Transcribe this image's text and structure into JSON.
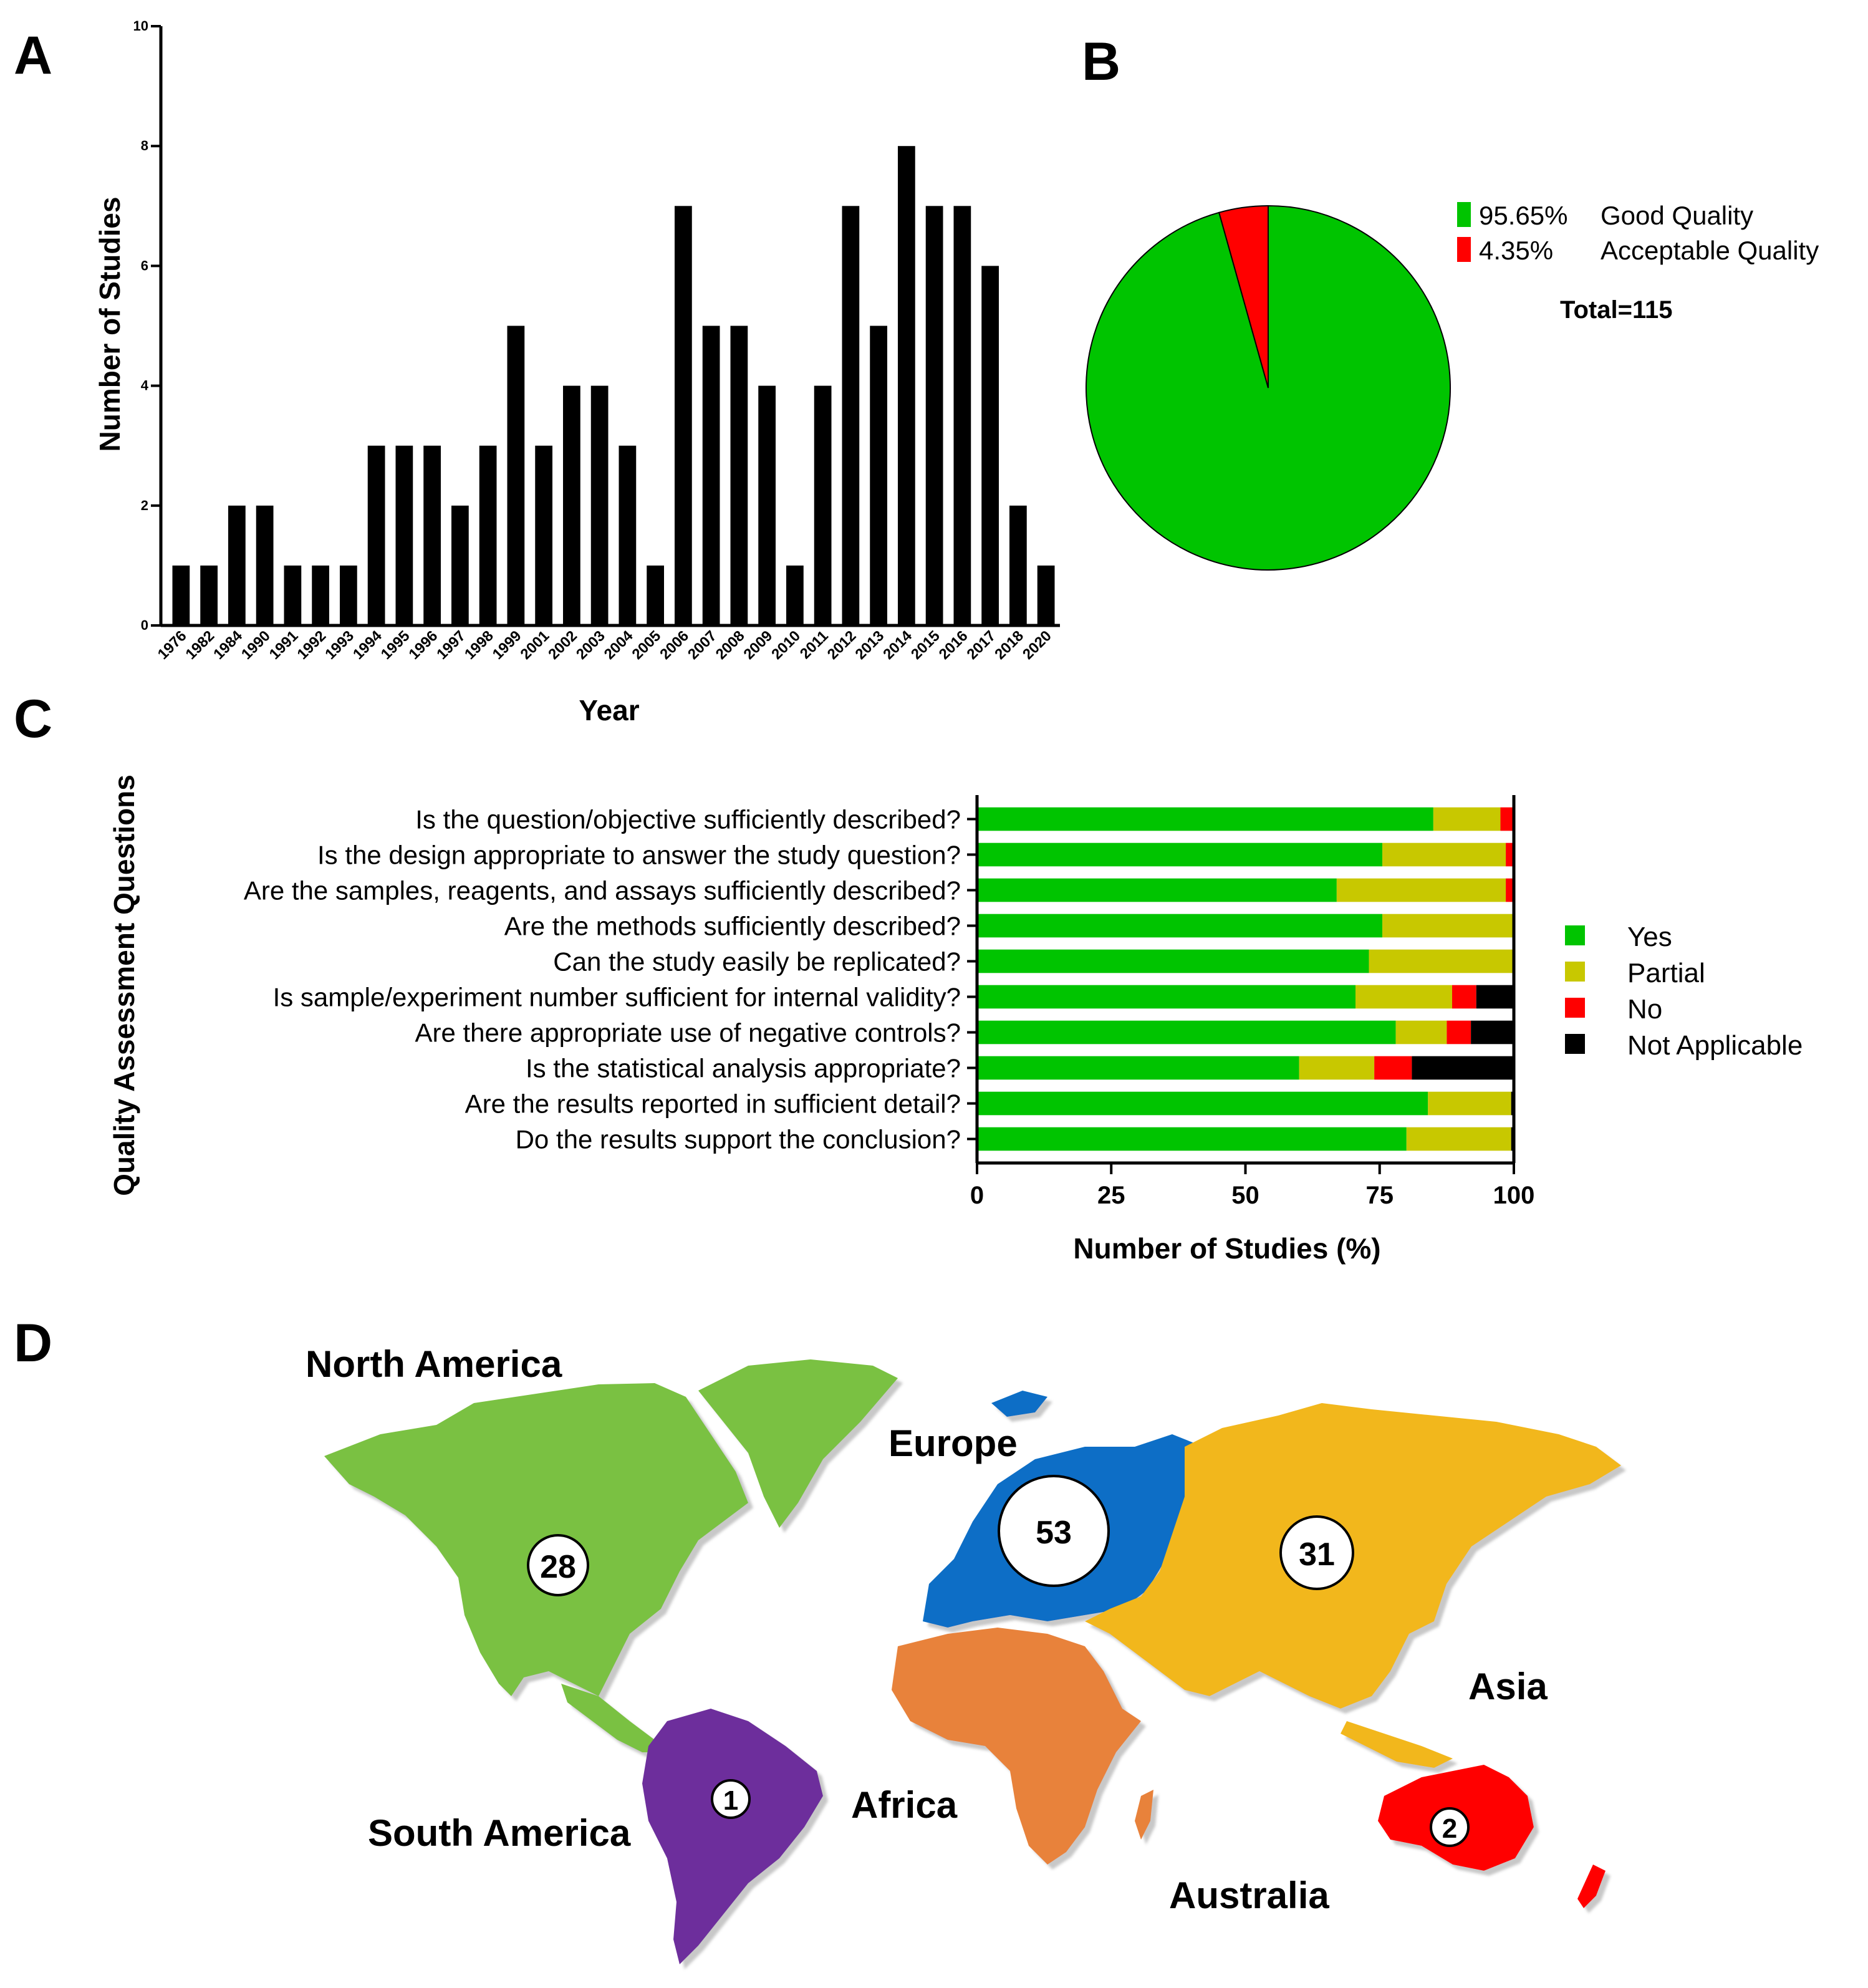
{
  "chart_data": [
    {
      "panel": "A",
      "type": "bar",
      "title": "",
      "xlabel": "Year",
      "ylabel": "Number of Studies",
      "ylim": [
        0,
        10
      ],
      "yticks": [
        "0",
        "2",
        "4",
        "6",
        "8",
        "10"
      ],
      "categories": [
        "1976",
        "1982",
        "1984",
        "1990",
        "1991",
        "1992",
        "1993",
        "1994",
        "1995",
        "1996",
        "1997",
        "1998",
        "1999",
        "2001",
        "2002",
        "2003",
        "2004",
        "2005",
        "2006",
        "2007",
        "2008",
        "2009",
        "2010",
        "2011",
        "2012",
        "2013",
        "2014",
        "2015",
        "2016",
        "2017",
        "2018",
        "2020"
      ],
      "values": [
        1,
        1,
        2,
        2,
        1,
        1,
        1,
        3,
        3,
        3,
        2,
        3,
        5,
        3,
        4,
        4,
        3,
        1,
        7,
        5,
        5,
        4,
        1,
        4,
        7,
        5,
        8,
        7,
        7,
        6,
        2,
        1
      ],
      "bar_color": "#000000"
    },
    {
      "panel": "B",
      "type": "pie",
      "slices": [
        {
          "percent": "95.65%",
          "value": 95.65,
          "label": "Good Quality",
          "color": "#00c400"
        },
        {
          "percent": "4.35%",
          "value": 4.35,
          "label": "Acceptable Quality",
          "color": "#ff0000"
        }
      ],
      "total_label": "Total=115",
      "legend": "right"
    },
    {
      "panel": "C",
      "type": "bar",
      "orientation": "horizontal",
      "stacked": true,
      "xlabel": "Number of Studies  (%)",
      "ylabel": "Quality Assessment Questions",
      "xlim": [
        0,
        100
      ],
      "xticks": [
        "0",
        "25",
        "50",
        "75",
        "100"
      ],
      "categories": [
        "Is the question/objective sufficiently described?",
        "Is the design appropriate to answer the study question?",
        "Are the samples, reagents, and assays sufficiently described?",
        "Are the methods sufficiently described?",
        "Can the study easily be replicated?",
        "Is sample/experiment number sufficient for internal validity?",
        "Are there appropriate use of negative controls?",
        "Is the statistical analysis appropriate?",
        "Are the results reported in sufficient detail?",
        "Do the results support the conclusion?"
      ],
      "series": [
        {
          "name": "Yes",
          "color": "#00c400",
          "values": [
            85,
            75.5,
            67,
            75.5,
            73,
            70.5,
            78,
            60,
            84,
            80
          ]
        },
        {
          "name": "Partial",
          "color": "#c8c800",
          "values": [
            12.5,
            23,
            31.5,
            24.5,
            27,
            18,
            9.5,
            14,
            15.5,
            19.5
          ]
        },
        {
          "name": "No",
          "color": "#ff0000",
          "values": [
            2.5,
            1.5,
            1.5,
            0,
            0,
            4.5,
            4.5,
            7,
            0,
            0
          ]
        },
        {
          "name": "Not Applicable",
          "color": "#000000",
          "values": [
            0,
            0,
            0,
            0,
            0,
            7,
            8,
            19,
            0.5,
            0.5
          ]
        }
      ],
      "legend": "right"
    },
    {
      "panel": "D",
      "type": "map",
      "regions": [
        {
          "name": "North America",
          "count": "28",
          "color": "#7ac143"
        },
        {
          "name": "Europe",
          "count": "53",
          "color": "#0a6ec6"
        },
        {
          "name": "Asia",
          "count": "31",
          "color": "#f2b71a"
        },
        {
          "name": "Africa",
          "count": "",
          "color": "#e8823a"
        },
        {
          "name": "South America",
          "count": "1",
          "color": "#6d2f9c"
        },
        {
          "name": "Australia",
          "count": "2",
          "color": "#ff0000"
        }
      ]
    }
  ]
}
